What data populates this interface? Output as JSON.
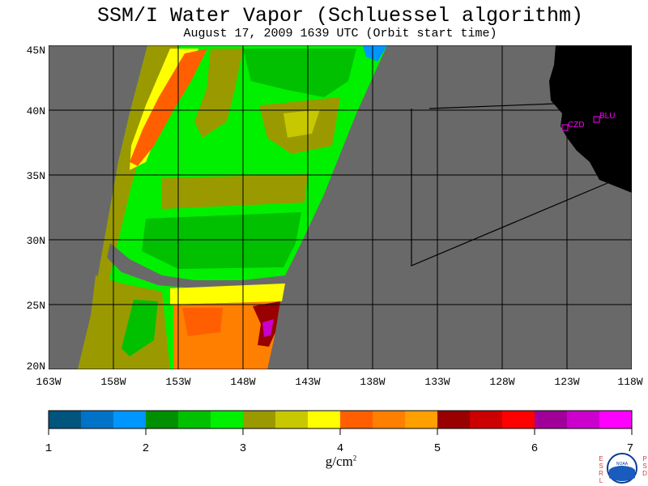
{
  "title": "SSM/I Water Vapor (Schluessel algorithm)",
  "subtitle": "August 17, 2009  1639 UTC  (Orbit start time)",
  "map": {
    "lat_labels": [
      "45N",
      "40N",
      "35N",
      "30N",
      "25N",
      "20N"
    ],
    "lon_labels": [
      "163W",
      "158W",
      "153W",
      "148W",
      "143W",
      "138W",
      "133W",
      "128W",
      "123W",
      "118W"
    ],
    "stations": [
      {
        "id": "CZD",
        "label": "CZD"
      },
      {
        "id": "BLU",
        "label": "BLU"
      }
    ],
    "colors": {
      "no_data": "#696969",
      "land": "#000000",
      "station": "#ff00ff"
    }
  },
  "colorbar": {
    "ticks": [
      "1",
      "2",
      "3",
      "4",
      "5",
      "6",
      "7"
    ],
    "colors": [
      "#00557f",
      "#0073c8",
      "#0096ff",
      "#008f00",
      "#00c000",
      "#00f000",
      "#9a9a00",
      "#c8c800",
      "#ffff00",
      "#ff5f00",
      "#ff7f00",
      "#ff9f00",
      "#990000",
      "#cc0000",
      "#ff0000",
      "#a00099",
      "#cc00cc",
      "#ff00ff"
    ],
    "units": "g/cm",
    "units_exp": "2"
  },
  "logo": {
    "left_letters": "ESRL",
    "right_letters": "PSD",
    "text": "NOAA"
  }
}
